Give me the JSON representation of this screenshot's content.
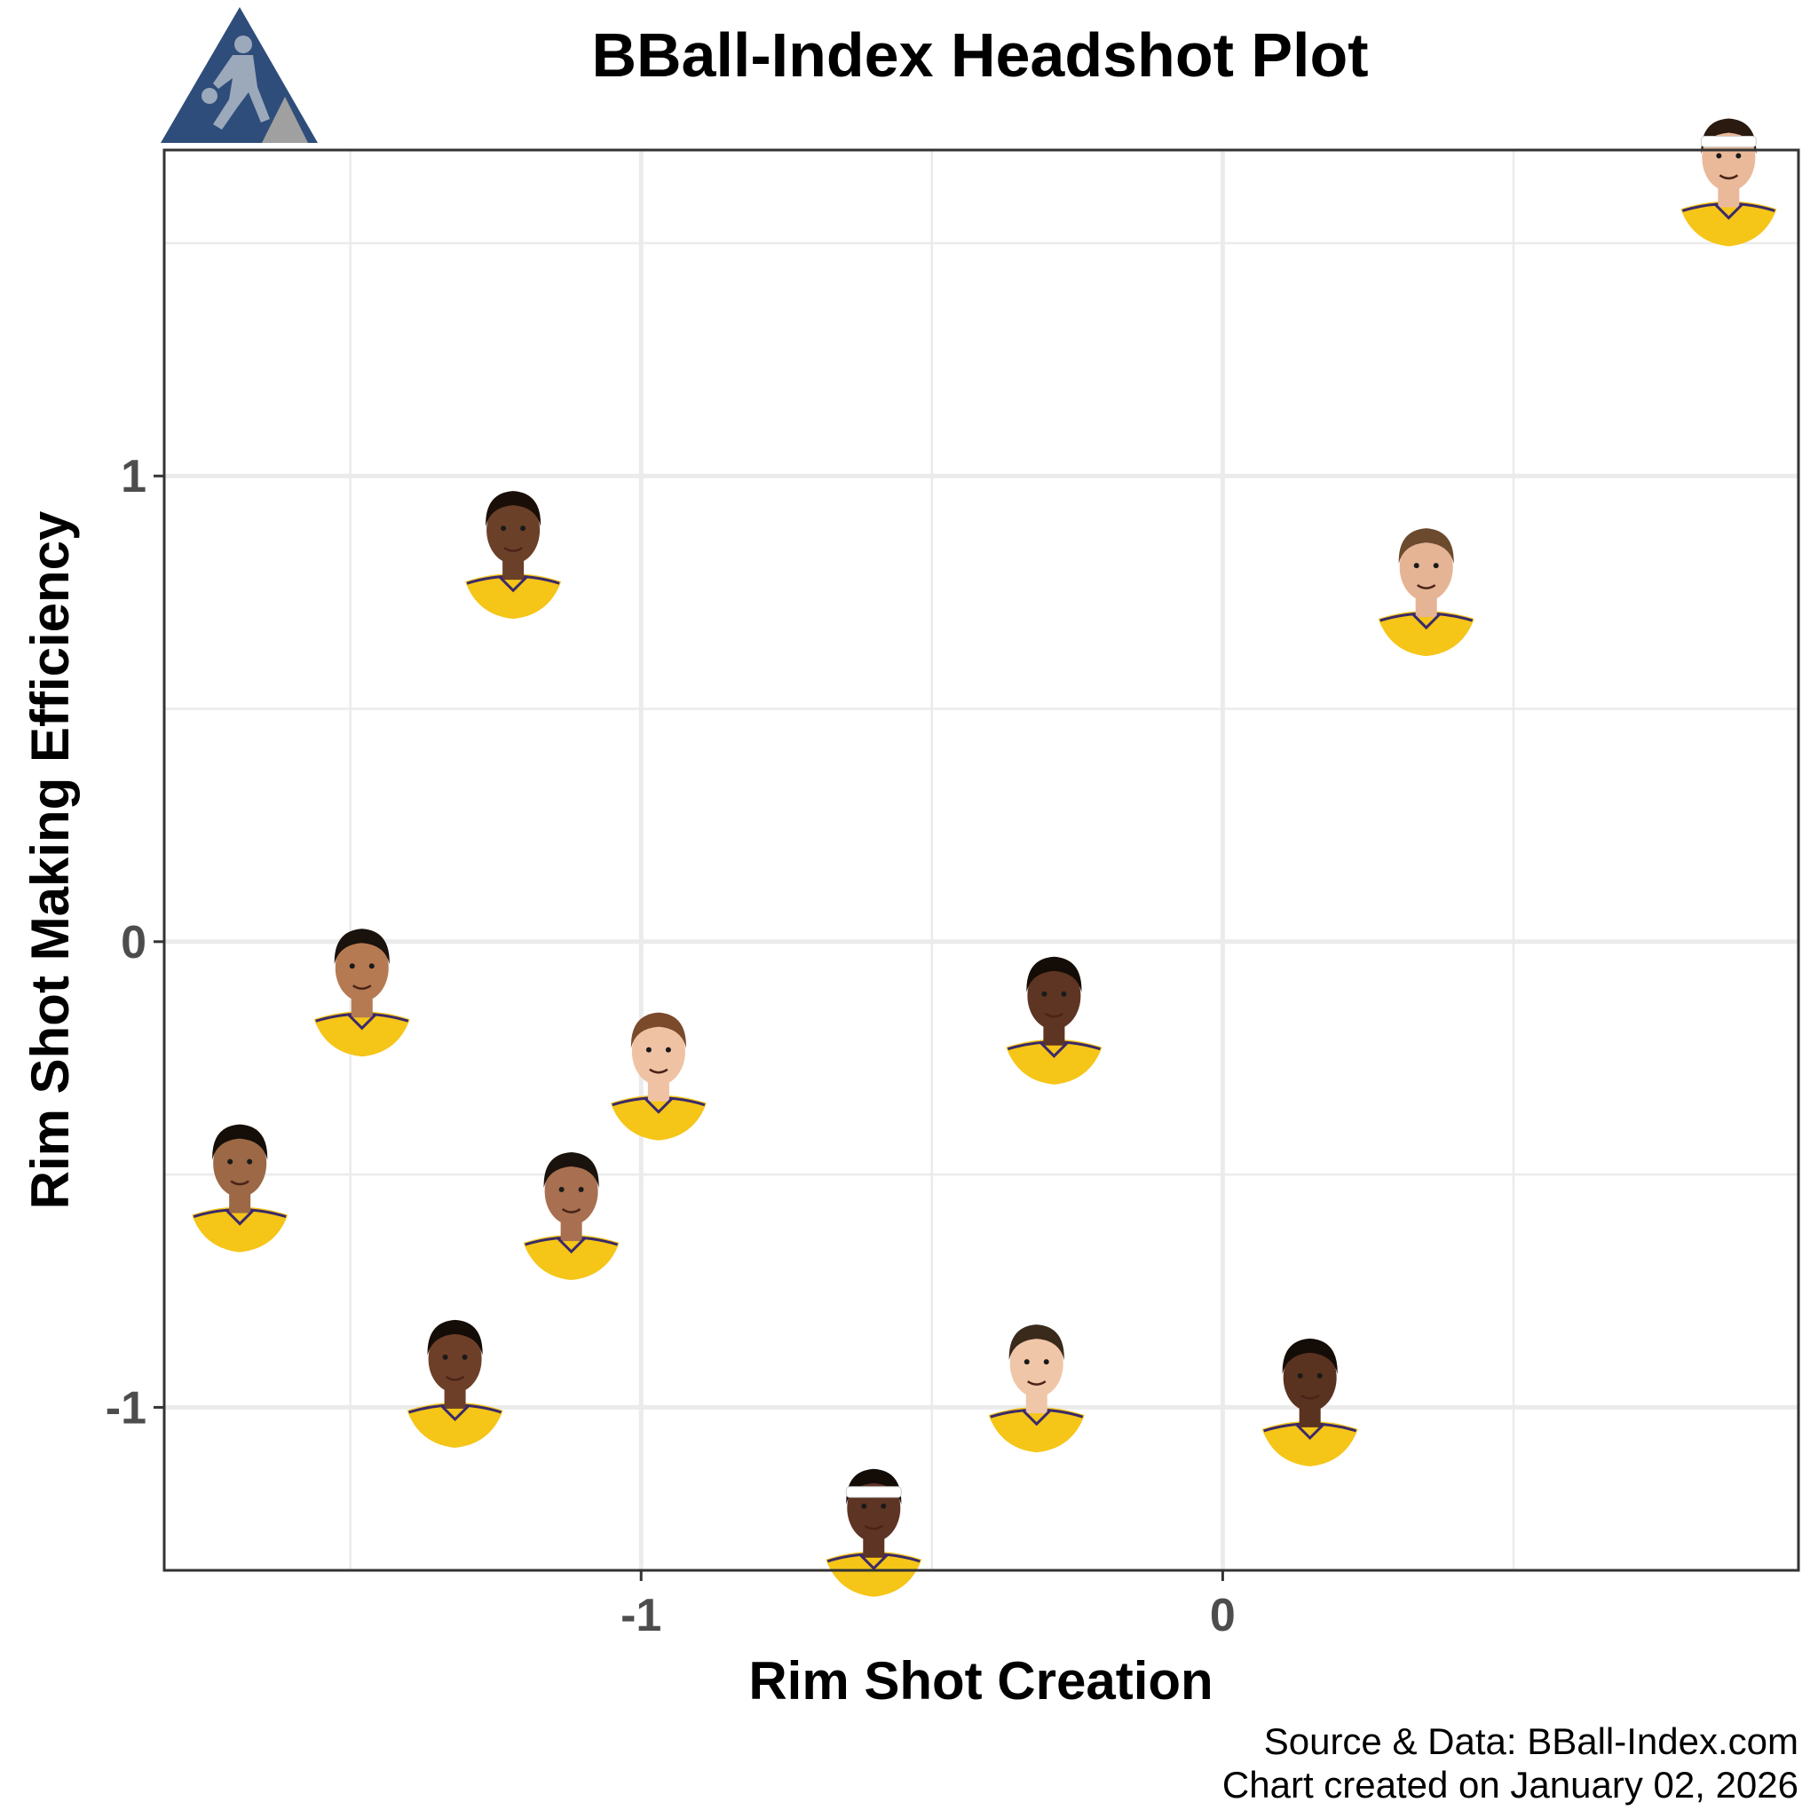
{
  "chart_data": {
    "type": "scatter",
    "title": "BBall-Index Headshot Plot",
    "xlabel": "Rim Shot Creation",
    "ylabel": "Rim Shot Making Efficiency",
    "xlim": [
      -1.82,
      0.99
    ],
    "ylim": [
      -1.35,
      1.7
    ],
    "x_ticks": [
      -1,
      0
    ],
    "x_tick_labels": [
      "-1",
      "0"
    ],
    "y_ticks": [
      -1,
      0,
      1
    ],
    "y_tick_labels": [
      "-1",
      "0",
      "1"
    ],
    "x_minor": [
      -1.5,
      -0.5,
      0.5
    ],
    "y_minor": [
      -0.5,
      0.5,
      1.5
    ],
    "grid": true,
    "legend": "none",
    "points": [
      {
        "x": 0.87,
        "y": 1.6,
        "skin": "#e9b99a",
        "hair": "#2a1a10",
        "band": true,
        "band_color": "#ffffff"
      },
      {
        "x": 0.35,
        "y": 0.72,
        "skin": "#e5b495",
        "hair": "#6b4a2e",
        "band": false,
        "band_color": ""
      },
      {
        "x": -1.22,
        "y": 0.8,
        "skin": "#6b4028",
        "hair": "#1a0f08",
        "band": false,
        "band_color": ""
      },
      {
        "x": -1.48,
        "y": -0.14,
        "skin": "#b57a52",
        "hair": "#1a120c",
        "band": false,
        "band_color": ""
      },
      {
        "x": -1.69,
        "y": -0.56,
        "skin": "#9c6845",
        "hair": "#140d08",
        "band": false,
        "band_color": ""
      },
      {
        "x": -0.97,
        "y": -0.32,
        "skin": "#f0c2a4",
        "hair": "#7a4a2a",
        "band": false,
        "band_color": ""
      },
      {
        "x": -1.12,
        "y": -0.62,
        "skin": "#a87050",
        "hair": "#1a120c",
        "band": false,
        "band_color": ""
      },
      {
        "x": -0.29,
        "y": -0.2,
        "skin": "#5e3522",
        "hair": "#140c07",
        "band": false,
        "band_color": ""
      },
      {
        "x": -1.32,
        "y": -0.98,
        "skin": "#6e3f28",
        "hair": "#140c07",
        "band": false,
        "band_color": ""
      },
      {
        "x": -0.32,
        "y": -0.99,
        "skin": "#f0c6a8",
        "hair": "#3a2a1c",
        "band": false,
        "band_color": ""
      },
      {
        "x": 0.15,
        "y": -1.02,
        "skin": "#5a3220",
        "hair": "#140c07",
        "band": false,
        "band_color": ""
      },
      {
        "x": -0.6,
        "y": -1.3,
        "skin": "#5e3424",
        "hair": "#140c07",
        "band": true,
        "band_color": "#ffffff"
      }
    ],
    "caption_lines": [
      "Source & Data: BBall-Index.com",
      "Chart created on January 02, 2026"
    ]
  },
  "logo": {
    "colors": {
      "primary": "#2e4d7a",
      "secondary": "#a0a0a0",
      "figure": "#9ba9bb"
    },
    "icon": "basketball-player-logo"
  },
  "style": {
    "panel_border": "#333333",
    "jersey": "#f5c518",
    "jersey_trim": "#3b2a6a"
  }
}
